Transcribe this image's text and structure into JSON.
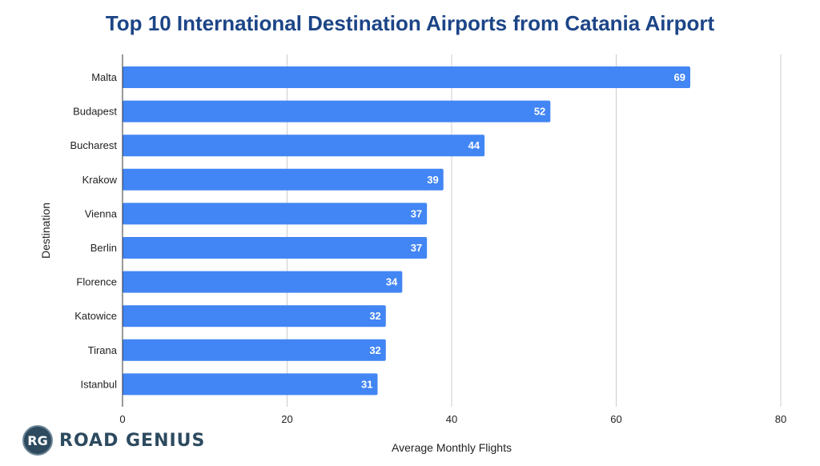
{
  "chart_data": {
    "type": "bar",
    "orientation": "horizontal",
    "title": "Top 10 International Destination Airports from Catania Airport",
    "xlabel": "Average Monthly Flights",
    "ylabel": "Destination",
    "categories": [
      "Malta",
      "Budapest",
      "Bucharest",
      "Krakow",
      "Vienna",
      "Berlin",
      "Florence",
      "Katowice",
      "Tirana",
      "Istanbul"
    ],
    "values": [
      69,
      52,
      44,
      39,
      37,
      37,
      34,
      32,
      32,
      31
    ],
    "xlim": [
      0,
      80
    ],
    "xticks": [
      0,
      20,
      40,
      60,
      80
    ],
    "grid": true,
    "bar_color": "#4285f4",
    "label_color": "#ffffff",
    "title_color": "#1c4587"
  },
  "logo": {
    "initials": "RG",
    "name": "ROAD GENIUS"
  }
}
